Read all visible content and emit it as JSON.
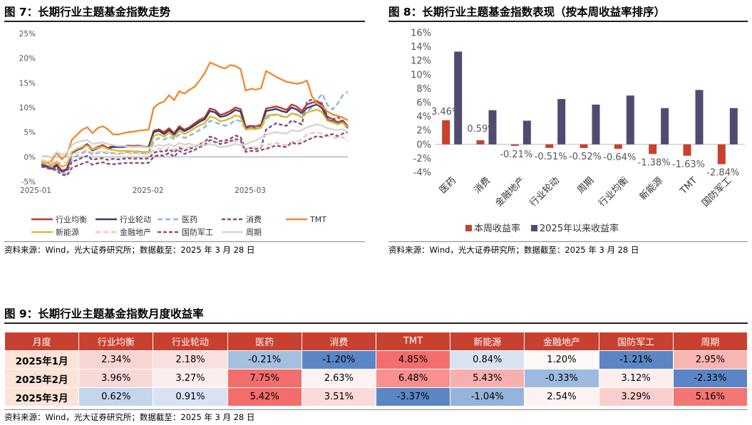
{
  "fig7": {
    "title": "图 7：长期行业主题基金指数走势",
    "source": "资料来源：Wind，光大证券研究所；数据截至：2025 年 3 月 28 日"
  },
  "fig8": {
    "title": "图 8：长期行业主题基金指数表现（按本周收益率排序）",
    "source": "资料来源：Wind，光大证券研究所；数据截至：2025 年 3 月 28 日"
  },
  "fig9": {
    "title": "图 9：长期行业主题基金指数月度收益率",
    "source": "资料来源：Wind，光大证券研究所；数据截至：2025 年 3 月 28 日"
  },
  "chart_data": [
    {
      "type": "line",
      "yticks": [
        "-5%",
        "0%",
        "5%",
        "10%",
        "15%",
        "20%",
        "25%"
      ],
      "ylim": [
        -5,
        25
      ],
      "xticks": [
        "2025-01",
        "2025-02",
        "2025-03"
      ],
      "xlim": [
        0,
        60
      ],
      "xtick_pos": [
        0,
        22,
        42
      ],
      "legend_position": "bottom",
      "series": [
        {
          "name": "行业均衡",
          "color": "#c0392b",
          "dash": "",
          "values": [
            -1.5,
            -1.8,
            -2.2,
            -1.5,
            -2.8,
            -2.5,
            1.0,
            1.5,
            2.0,
            2.6,
            1.5,
            2.0,
            2.4,
            1.8,
            2.2,
            2.0,
            2.1,
            2.3,
            2.2,
            2.3,
            2.1,
            2.0,
            5.3,
            5.6,
            5.0,
            5.8,
            4.8,
            6.2,
            5.5,
            6.0,
            6.8,
            7.5,
            8.0,
            9.8,
            9.5,
            8.5,
            8.8,
            9.3,
            10.0,
            9.7,
            6.1,
            6.3,
            6.2,
            6.5,
            9.8,
            10.0,
            10.2,
            9.9,
            9.5,
            10.6,
            10.2,
            9.3,
            10.6,
            11.0,
            11.3,
            10.5,
            8.0,
            7.7,
            7.0,
            7.4,
            6.2
          ]
        },
        {
          "name": "行业轮动",
          "color": "#3b3b6d",
          "dash": "",
          "values": [
            -1.8,
            -2.0,
            -2.4,
            -1.8,
            -3.0,
            -2.6,
            0.8,
            1.4,
            1.8,
            2.4,
            1.3,
            1.7,
            2.1,
            1.6,
            2.0,
            2.0,
            2.0,
            2.1,
            2.0,
            2.1,
            2.0,
            2.0,
            5.0,
            5.3,
            4.6,
            5.4,
            4.5,
            5.8,
            5.2,
            5.7,
            6.4,
            7.1,
            7.6,
            9.3,
            9.0,
            8.1,
            8.3,
            8.8,
            9.5,
            9.2,
            5.8,
            5.9,
            5.8,
            6.1,
            9.3,
            9.5,
            9.7,
            9.3,
            9.0,
            10.0,
            9.6,
            8.8,
            9.9,
            10.3,
            10.6,
            9.8,
            7.5,
            7.2,
            6.6,
            7.0,
            5.8
          ]
        },
        {
          "name": "医药",
          "color": "#8fb4d4",
          "dash": "7,4",
          "values": [
            -1.2,
            -1.5,
            -2.0,
            -2.5,
            -3.2,
            -3.5,
            -0.5,
            0.3,
            0.8,
            1.2,
            0.5,
            0.8,
            1.0,
            0.6,
            0.8,
            0.6,
            0.8,
            1.0,
            0.8,
            0.9,
            0.7,
            0.6,
            3.2,
            3.8,
            3.5,
            4.1,
            3.6,
            4.5,
            3.8,
            4.3,
            4.8,
            5.5,
            6.0,
            7.3,
            7.0,
            6.6,
            6.3,
            6.7,
            7.5,
            7.2,
            5.6,
            5.8,
            6.0,
            5.9,
            7.8,
            8.3,
            8.6,
            8.2,
            8.0,
            8.8,
            8.5,
            8.6,
            9.2,
            10.0,
            11.5,
            12.8,
            10.5,
            9.6,
            10.8,
            12.5,
            13.2
          ]
        },
        {
          "name": "消费",
          "color": "#7c4d79",
          "dash": "5,3",
          "values": [
            -2.0,
            -2.2,
            -2.6,
            -2.2,
            -3.0,
            -2.8,
            -1.0,
            -0.6,
            -0.2,
            0.2,
            -0.6,
            -0.4,
            -0.3,
            -0.6,
            -0.4,
            -0.5,
            -0.4,
            -0.3,
            -0.4,
            -0.3,
            -0.4,
            -0.3,
            0.8,
            1.2,
            1.0,
            1.5,
            0.9,
            1.8,
            1.3,
            1.6,
            2.0,
            2.6,
            3.0,
            4.1,
            3.8,
            3.2,
            3.3,
            3.7,
            4.3,
            4.0,
            1.5,
            1.8,
            1.6,
            1.9,
            5.5,
            6.2,
            6.8,
            6.5,
            6.3,
            7.4,
            7.0,
            6.6,
            11.2,
            11.6,
            11.3,
            10.8,
            8.2,
            7.5,
            8.1,
            7.2,
            6.0
          ]
        },
        {
          "name": "TMT",
          "color": "#ef8c36",
          "dash": "",
          "values": [
            -1.0,
            -1.2,
            -0.8,
            0.8,
            -0.5,
            0.5,
            3.5,
            4.5,
            5.5,
            6.0,
            4.8,
            5.8,
            6.2,
            5.6,
            4.6,
            4.5,
            4.8,
            5.0,
            5.1,
            5.3,
            5.4,
            5.5,
            10.0,
            10.8,
            11.2,
            12.5,
            11.5,
            13.3,
            12.8,
            13.6,
            14.2,
            15.5,
            17.0,
            19.1,
            18.7,
            18.2,
            17.9,
            18.6,
            18.4,
            17.8,
            13.4,
            13.8,
            13.6,
            13.9,
            17.4,
            16.8,
            16.2,
            15.7,
            15.2,
            15.0,
            14.8,
            15.0,
            15.5,
            12.2,
            10.8,
            10.2,
            9.2,
            8.6,
            8.3,
            8.0,
            7.4
          ]
        },
        {
          "name": "新能源",
          "color": "#d9b834",
          "dash": "",
          "values": [
            -1.0,
            -1.2,
            -1.6,
            -1.0,
            -2.0,
            -1.6,
            1.0,
            1.6,
            2.0,
            2.3,
            1.5,
            1.8,
            2.1,
            1.6,
            1.4,
            1.2,
            1.2,
            1.2,
            1.1,
            1.1,
            1.0,
            1.0,
            4.2,
            4.6,
            4.1,
            4.9,
            4.0,
            5.3,
            4.6,
            5.1,
            5.8,
            6.4,
            6.8,
            8.2,
            7.9,
            7.2,
            7.4,
            7.8,
            8.4,
            8.1,
            5.5,
            5.7,
            5.6,
            5.9,
            8.3,
            8.5,
            8.6,
            8.3,
            8.0,
            8.8,
            8.6,
            8.0,
            9.0,
            9.3,
            9.6,
            9.0,
            7.3,
            7.0,
            6.6,
            6.9,
            6.0
          ]
        },
        {
          "name": "金融地产",
          "color": "#f5c6b3",
          "dash": "7,4",
          "values": [
            -0.6,
            -0.8,
            -1.1,
            -0.8,
            -1.4,
            -1.0,
            0.5,
            0.9,
            1.1,
            1.4,
            0.8,
            1.0,
            1.1,
            0.9,
            0.6,
            0.6,
            0.7,
            0.7,
            0.6,
            0.7,
            0.6,
            0.5,
            1.4,
            1.7,
            1.5,
            1.9,
            1.4,
            2.1,
            1.8,
            2.0,
            2.3,
            2.6,
            2.9,
            3.4,
            3.2,
            2.9,
            2.8,
            3.0,
            3.2,
            3.0,
            1.7,
            2.0,
            1.9,
            2.1,
            2.5,
            2.6,
            2.8,
            2.5,
            2.4,
            3.0,
            3.1,
            3.5,
            4.6,
            4.8,
            5.0,
            4.6,
            4.2,
            4.0,
            3.8,
            4.0,
            3.3
          ]
        },
        {
          "name": "国防军工",
          "color": "#8f4c7b",
          "dash": "5,3",
          "values": [
            -1.9,
            -2.2,
            -2.4,
            -2.8,
            -3.6,
            -3.8,
            -2.2,
            -1.8,
            -1.4,
            -1.0,
            -1.6,
            -1.3,
            -1.1,
            -1.4,
            -1.5,
            -1.4,
            -1.3,
            -1.2,
            -1.3,
            -1.2,
            -1.3,
            -1.2,
            0.0,
            0.4,
            0.2,
            0.8,
            0.0,
            1.2,
            0.6,
            1.0,
            1.4,
            2.0,
            2.4,
            3.4,
            3.0,
            2.6,
            2.8,
            3.2,
            3.6,
            3.4,
            1.0,
            1.2,
            1.1,
            1.4,
            1.6,
            2.0,
            2.3,
            2.1,
            2.0,
            2.9,
            2.6,
            2.8,
            3.4,
            3.8,
            4.2,
            4.0,
            4.4,
            4.6,
            4.2,
            4.7,
            5.0
          ]
        },
        {
          "name": "周期",
          "color": "#d5d5d5",
          "dash": "",
          "values": [
            0.0,
            0.2,
            -0.2,
            1.0,
            0.4,
            0.8,
            2.4,
            3.0,
            3.2,
            3.4,
            2.6,
            2.8,
            2.9,
            2.6,
            2.4,
            2.2,
            2.2,
            2.1,
            2.0,
            2.1,
            2.0,
            1.9,
            2.1,
            2.4,
            2.2,
            2.6,
            2.1,
            2.8,
            2.5,
            2.7,
            2.2,
            2.4,
            2.3,
            2.6,
            2.4,
            2.0,
            2.1,
            2.3,
            2.6,
            2.4,
            2.5,
            3.0,
            3.3,
            3.9,
            4.5,
            4.8,
            5.0,
            4.8,
            4.7,
            5.4,
            5.2,
            5.4,
            6.0,
            6.3,
            6.6,
            6.3,
            5.8,
            5.6,
            5.4,
            5.6,
            5.1
          ]
        }
      ]
    },
    {
      "type": "bar",
      "categories": [
        "医药",
        "消费",
        "金融地产",
        "行业轮动",
        "周期",
        "行业均衡",
        "新能源",
        "TMT",
        "国防军工"
      ],
      "ylim": [
        -4,
        16
      ],
      "yticks": [
        "-4%",
        "-2%",
        "0%",
        "2%",
        "4%",
        "6%",
        "8%",
        "10%",
        "12%",
        "14%",
        "16%"
      ],
      "legend_position": "bottom",
      "series": [
        {
          "name": "本周收益率",
          "color": "#c8402f",
          "values": [
            3.46,
            0.59,
            -0.21,
            -0.51,
            -0.52,
            -0.64,
            -1.38,
            -1.63,
            -2.84
          ]
        },
        {
          "name": "2025年以来收益率",
          "color": "#4f4b72",
          "values": [
            13.3,
            4.9,
            3.4,
            6.5,
            5.7,
            7.0,
            5.2,
            7.8,
            5.2
          ]
        }
      ],
      "data_labels": [
        "3.46%",
        "0.59%",
        "-0.21%",
        "-0.51%",
        "-0.52%",
        "-0.64%",
        "-1.38%",
        "-1.63%",
        "-2.84%"
      ]
    },
    {
      "type": "table",
      "columns": [
        "月度",
        "行业均衡",
        "行业轮动",
        "医药",
        "消费",
        "TMT",
        "新能源",
        "金融地产",
        "国防军工",
        "周期"
      ],
      "rows": [
        {
          "label": "2025年1月",
          "values": [
            "2.34%",
            "2.18%",
            "-0.21%",
            "-1.20%",
            "4.85%",
            "0.84%",
            "1.20%",
            "-1.21%",
            "2.95%"
          ],
          "colors": [
            "#f7d5d3",
            "#f8e0df",
            "#a5bfe0",
            "#5b86c6",
            "#f26d6b",
            "#d8e3f2",
            "#fdf8f8",
            "#5b86c6",
            "#f7b5b4"
          ]
        },
        {
          "label": "2025年2月",
          "values": [
            "3.96%",
            "3.27%",
            "7.75%",
            "2.63%",
            "6.48%",
            "5.43%",
            "-0.33%",
            "3.12%",
            "-2.33%"
          ],
          "colors": [
            "#f9d9d8",
            "#fdeeee",
            "#f26d6b",
            "#fdf2f2",
            "#f7908e",
            "#f8b0af",
            "#9dbbe0",
            "#fdeeee",
            "#5b86c6"
          ]
        },
        {
          "label": "2025年3月",
          "values": [
            "0.62%",
            "0.91%",
            "5.42%",
            "3.51%",
            "-3.37%",
            "-1.04%",
            "2.54%",
            "3.29%",
            "5.16%"
          ],
          "colors": [
            "#c5d6ec",
            "#d8e3f2",
            "#f26d6b",
            "#fbdada",
            "#5b86c6",
            "#94b4dc",
            "#fdf2f2",
            "#f9cfce",
            "#f27674"
          ]
        }
      ]
    }
  ]
}
